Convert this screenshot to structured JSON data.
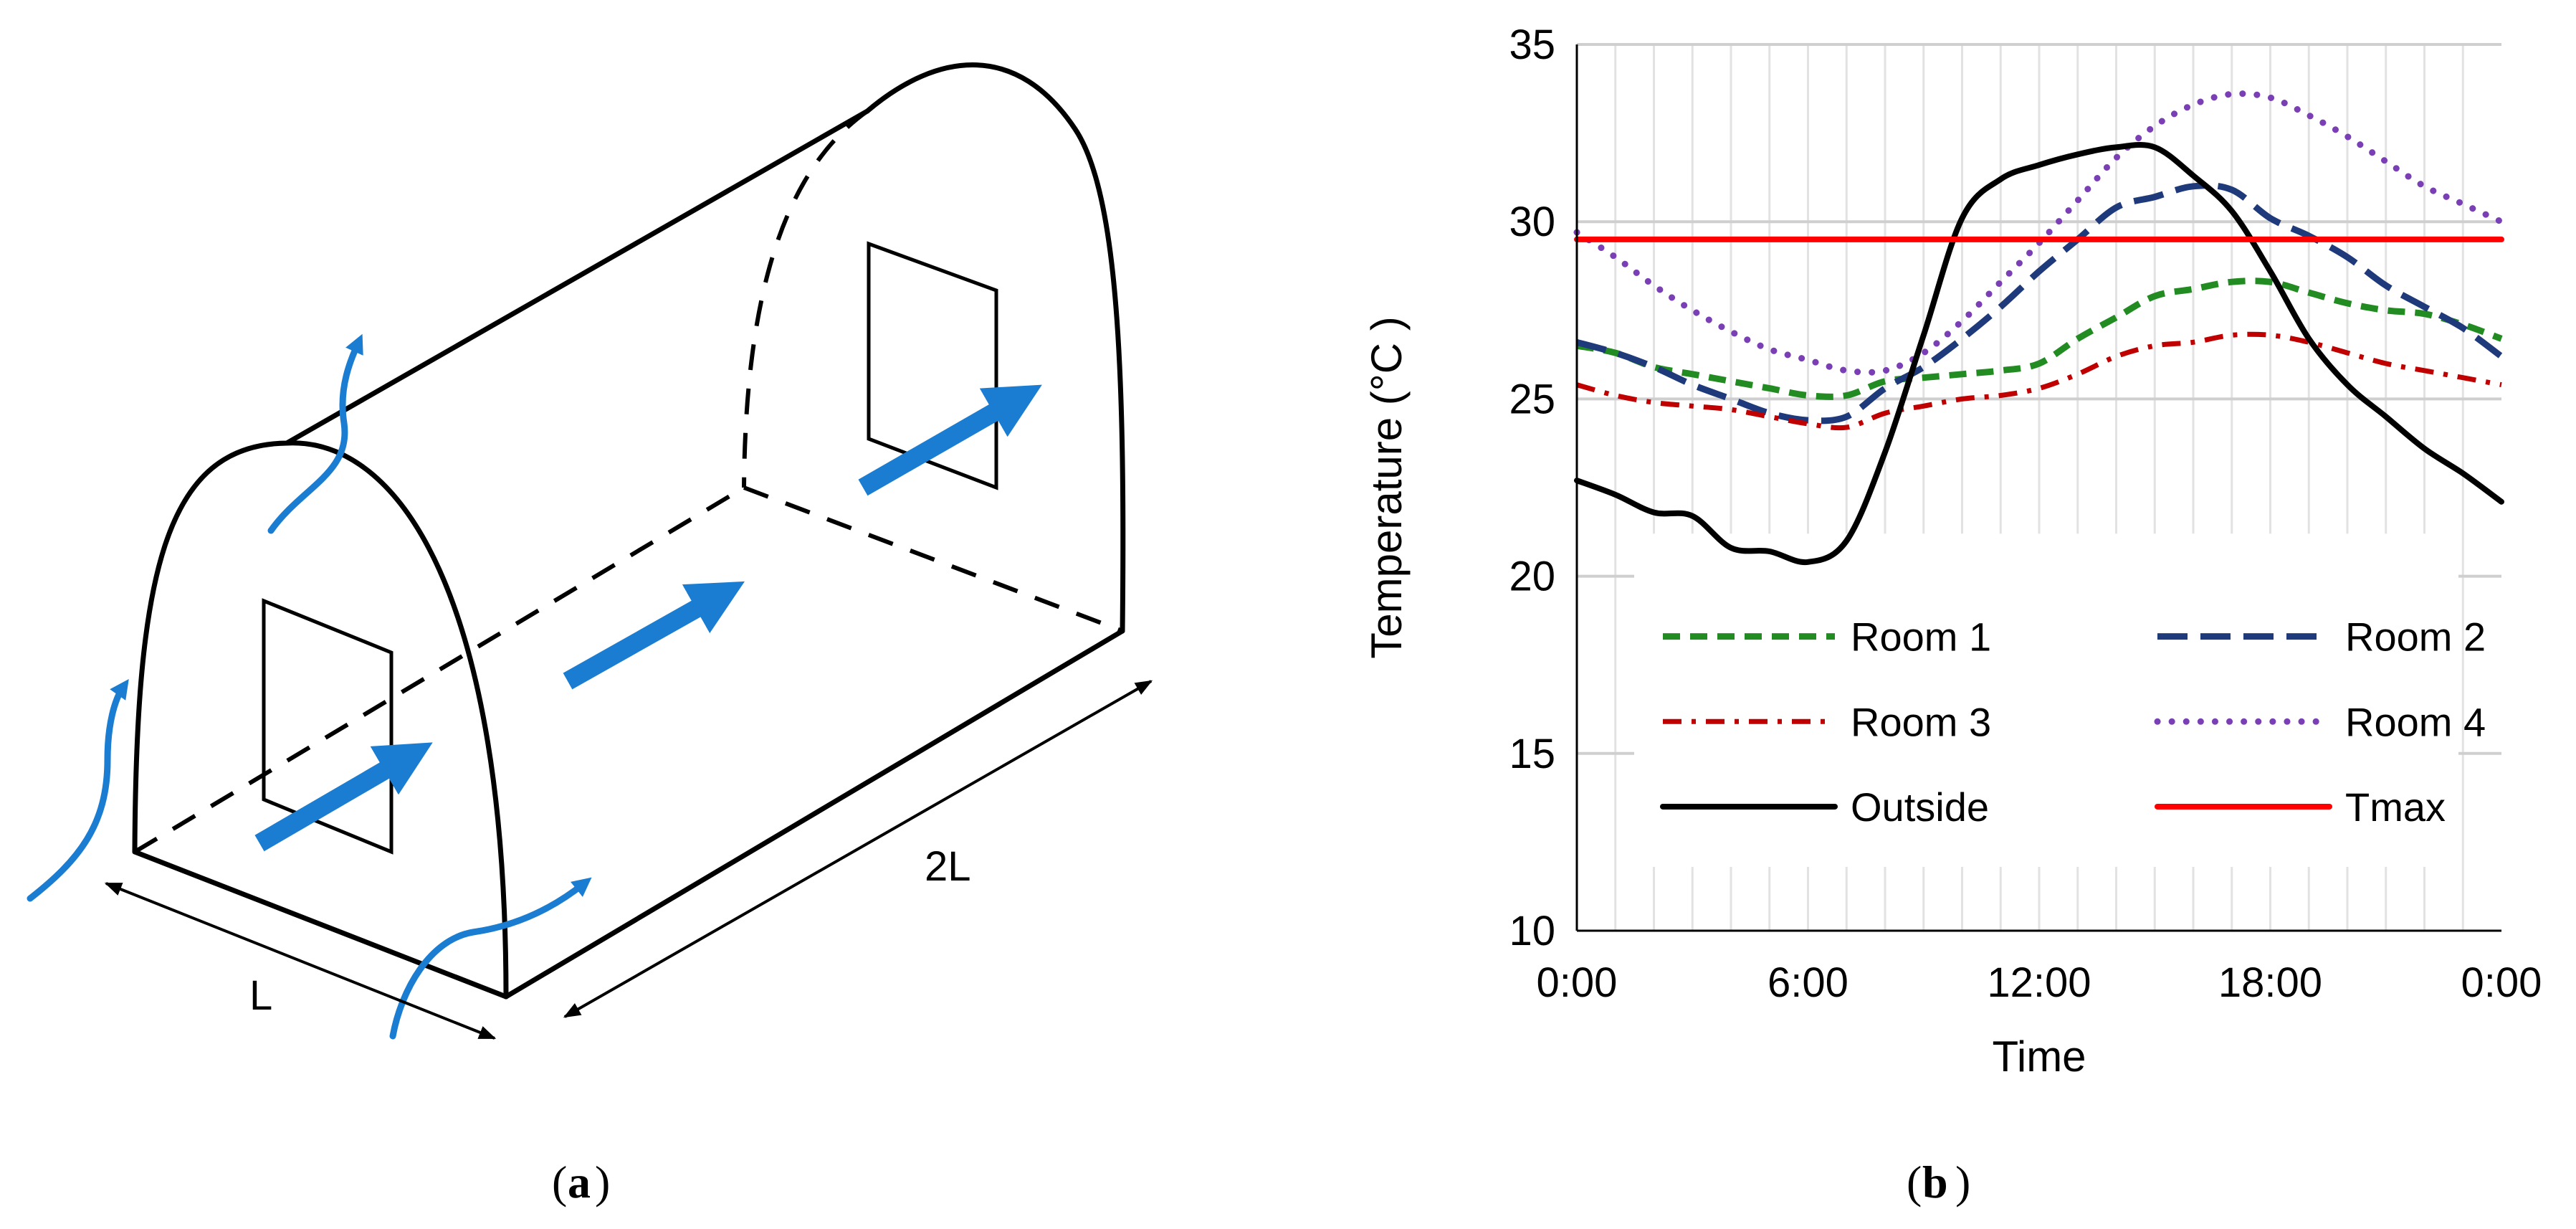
{
  "panel_a": {
    "caption_letter": "a",
    "dimension_short": "L",
    "dimension_long": "2L",
    "arrow_color": "#1a7dd1",
    "line_color": "#000000"
  },
  "panel_b": {
    "caption_letter": "b"
  },
  "chart_data": {
    "type": "line",
    "title": "",
    "xlabel": "Time",
    "ylabel": "Temperature (°C )",
    "xlim": [
      0,
      24
    ],
    "ylim": [
      10,
      35
    ],
    "xticks": [
      0,
      6,
      12,
      18,
      24
    ],
    "xtick_labels": [
      "0:00",
      "6:00",
      "12:00",
      "18:00",
      "0:00"
    ],
    "yticks": [
      10,
      15,
      20,
      25,
      30,
      35
    ],
    "ytick_labels": [
      "10",
      "15",
      "20",
      "25",
      "30",
      "35"
    ],
    "grid": "horizontal major lines and vertical hourly lines, light gray",
    "legend_placement": "lower-center inside plot, two columns",
    "series": [
      {
        "name": "Room 1",
        "color": "#228b22",
        "style": "short-dash",
        "x": [
          0,
          1,
          2,
          3,
          4,
          5,
          6,
          7,
          8,
          9,
          10,
          11,
          12,
          13,
          14,
          15,
          16,
          17,
          18,
          19,
          20,
          21,
          22,
          23,
          24
        ],
        "y": [
          26.5,
          26.3,
          25.9,
          25.7,
          25.5,
          25.3,
          25.1,
          25.1,
          25.5,
          25.6,
          25.7,
          25.8,
          26.0,
          26.7,
          27.3,
          27.9,
          28.1,
          28.3,
          28.3,
          28.0,
          27.7,
          27.5,
          27.4,
          27.1,
          26.7
        ]
      },
      {
        "name": "Room 2",
        "color": "#1f3a7a",
        "style": "long-dash",
        "x": [
          0,
          1,
          2,
          3,
          4,
          5,
          6,
          7,
          8,
          9,
          10,
          11,
          12,
          13,
          14,
          15,
          16,
          17,
          18,
          19,
          20,
          21,
          22,
          23,
          24
        ],
        "y": [
          26.6,
          26.3,
          25.9,
          25.4,
          25.0,
          24.6,
          24.4,
          24.5,
          25.3,
          25.9,
          26.7,
          27.6,
          28.6,
          29.5,
          30.4,
          30.7,
          31.0,
          30.9,
          30.1,
          29.6,
          29.0,
          28.2,
          27.6,
          27.0,
          26.2
        ]
      },
      {
        "name": "Room 3",
        "color": "#c00000",
        "style": "dash-dot",
        "x": [
          0,
          1,
          2,
          3,
          4,
          5,
          6,
          7,
          8,
          9,
          10,
          11,
          12,
          13,
          14,
          15,
          16,
          17,
          18,
          19,
          20,
          21,
          22,
          23,
          24
        ],
        "y": [
          25.4,
          25.1,
          24.9,
          24.8,
          24.7,
          24.5,
          24.3,
          24.2,
          24.6,
          24.8,
          25.0,
          25.1,
          25.3,
          25.7,
          26.2,
          26.5,
          26.6,
          26.8,
          26.8,
          26.6,
          26.3,
          26.0,
          25.8,
          25.6,
          25.4
        ]
      },
      {
        "name": "Room 4",
        "color": "#7b3fb5",
        "style": "dotted",
        "x": [
          0,
          1,
          2,
          3,
          4,
          5,
          6,
          7,
          8,
          9,
          10,
          11,
          12,
          13,
          14,
          15,
          16,
          17,
          18,
          19,
          20,
          21,
          22,
          23,
          24
        ],
        "y": [
          29.7,
          29.0,
          28.2,
          27.5,
          26.9,
          26.4,
          26.1,
          25.8,
          25.8,
          26.3,
          27.2,
          28.3,
          29.4,
          30.6,
          31.8,
          32.7,
          33.3,
          33.6,
          33.5,
          33.0,
          32.4,
          31.7,
          31.0,
          30.5,
          30.0
        ]
      },
      {
        "name": "Outside",
        "color": "#000000",
        "style": "solid",
        "x": [
          0,
          1,
          2,
          3,
          4,
          5,
          6,
          7,
          8,
          9,
          10,
          11,
          12,
          13,
          14,
          15,
          16,
          17,
          18,
          19,
          20,
          21,
          22,
          23,
          24
        ],
        "y": [
          22.7,
          22.3,
          21.8,
          21.7,
          20.8,
          20.7,
          20.4,
          21.0,
          23.5,
          26.8,
          30.1,
          31.2,
          31.6,
          31.9,
          32.1,
          32.1,
          31.3,
          30.3,
          28.6,
          26.7,
          25.4,
          24.5,
          23.6,
          22.9,
          22.1
        ]
      },
      {
        "name": "Tmax",
        "color": "#ff0000",
        "style": "solid",
        "x": [
          0,
          24
        ],
        "y": [
          29.5,
          29.5
        ]
      }
    ]
  }
}
